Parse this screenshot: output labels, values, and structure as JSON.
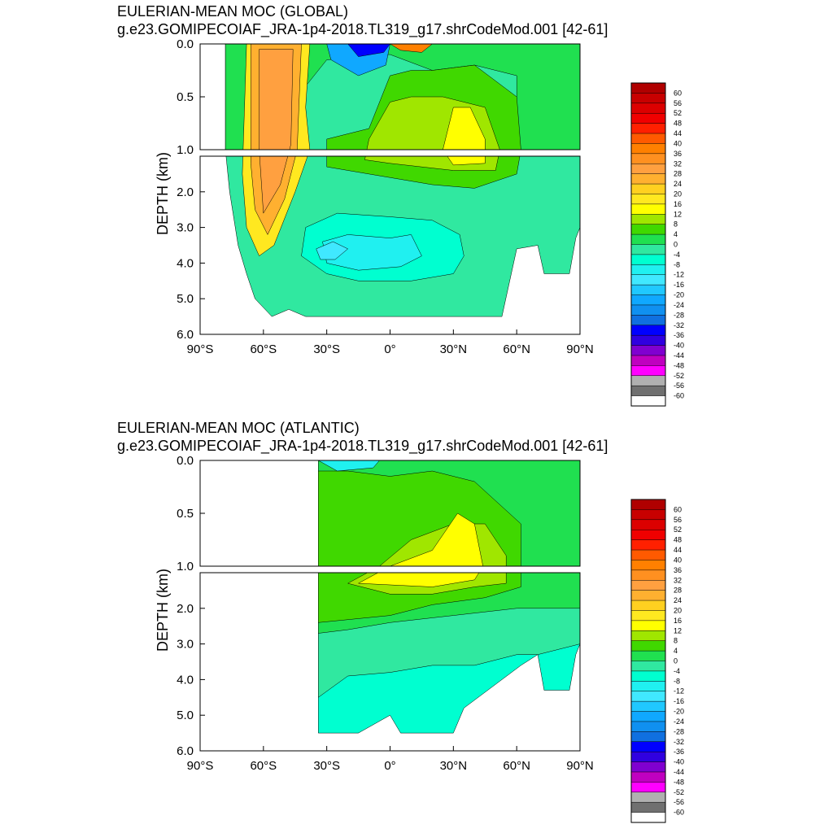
{
  "charts": [
    {
      "title": "EULERIAN-MEAN MOC (GLOBAL)",
      "subtitle": "g.e23.GOMIPECOIAF_JRA-1p4-2018.TL319_g17.shrCodeMod.001 [42-61]"
    },
    {
      "title": "EULERIAN-MEAN MOC (ATLANTIC)",
      "subtitle": "g.e23.GOMIPECOIAF_JRA-1p4-2018.TL319_g17.shrCodeMod.001 [42-61]"
    }
  ],
  "chart_data": [
    {
      "type": "heatmap",
      "title": "EULERIAN-MEAN MOC (GLOBAL)",
      "subtitle": "g.e23.GOMIPECOIAF_JRA-1p4-2018.TL319_g17.shrCodeMod.001 [42-61]",
      "ylabel": "DEPTH (km)",
      "xlim": [
        -90,
        90
      ],
      "ylim_upper": [
        0.0,
        1.0
      ],
      "ylim_lower": [
        1.0,
        6.0
      ],
      "x_ticks": [
        "90°S",
        "60°S",
        "30°S",
        "0°",
        "30°N",
        "60°N",
        "90°N"
      ],
      "y_ticks_upper": [
        "0.0",
        "0.5",
        "1.0"
      ],
      "y_ticks_lower": [
        "2.0",
        "3.0",
        "4.0",
        "5.0",
        "6.0"
      ],
      "colorbar_levels": [
        "60",
        "56",
        "52",
        "48",
        "44",
        "40",
        "36",
        "32",
        "28",
        "24",
        "20",
        "16",
        "12",
        "8",
        "4",
        "0",
        "-4",
        "-8",
        "-12",
        "-16",
        "-20",
        "-24",
        "-28",
        "-32",
        "-36",
        "-40",
        "-44",
        "-48",
        "-52",
        "-56",
        "-60"
      ]
    },
    {
      "type": "heatmap",
      "title": "EULERIAN-MEAN MOC (ATLANTIC)",
      "subtitle": "g.e23.GOMIPECOIAF_JRA-1p4-2018.TL319_g17.shrCodeMod.001 [42-61]",
      "ylabel": "DEPTH (km)",
      "xlim": [
        -90,
        90
      ],
      "ylim_upper": [
        0.0,
        1.0
      ],
      "ylim_lower": [
        1.0,
        6.0
      ],
      "x_ticks": [
        "90°S",
        "60°S",
        "30°S",
        "0°",
        "30°N",
        "60°N",
        "90°N"
      ],
      "y_ticks_upper": [
        "0.0",
        "0.5",
        "1.0"
      ],
      "y_ticks_lower": [
        "2.0",
        "3.0",
        "4.0",
        "5.0",
        "6.0"
      ],
      "colorbar_levels": [
        "60",
        "56",
        "52",
        "48",
        "44",
        "40",
        "36",
        "32",
        "28",
        "24",
        "20",
        "16",
        "12",
        "8",
        "4",
        "0",
        "-4",
        "-8",
        "-12",
        "-16",
        "-20",
        "-24",
        "-28",
        "-32",
        "-36",
        "-40",
        "-44",
        "-48",
        "-52",
        "-56",
        "-60"
      ]
    }
  ],
  "colorbar_colors": [
    "#b00000",
    "#c80000",
    "#dc0000",
    "#f00000",
    "#ff2000",
    "#ff5a00",
    "#ff8000",
    "#ff9020",
    "#ffa040",
    "#ffb030",
    "#ffd020",
    "#ffe820",
    "#ffff00",
    "#a0e600",
    "#40d800",
    "#20e050",
    "#30e8a0",
    "#00ffd0",
    "#20f0f0",
    "#40e8ff",
    "#20c8ff",
    "#10a8ff",
    "#1090f0",
    "#1070e0",
    "#0000ff",
    "#3000e0",
    "#8000d0",
    "#c000c0",
    "#ff00ff",
    "#b0b0b0",
    "#707070",
    "#ffffff"
  ]
}
